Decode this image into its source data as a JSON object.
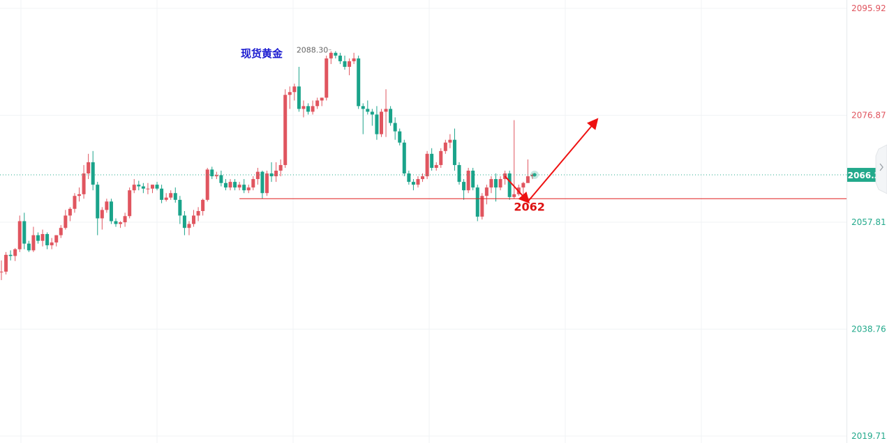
{
  "chart_data": {
    "type": "candlestick",
    "title": "现货黄金",
    "colors": {
      "up": "#e0555f",
      "down": "#1aa38a",
      "support_line": "#e01e1e",
      "arrow": "#ee1111",
      "price_tag_bg": "#22a98b",
      "grid": "#f0f3f5",
      "axis_high": "#e0555f",
      "axis_low": "#22a98b",
      "title": "#1b1bd0",
      "annotation": "#666666",
      "support_label": "#dd1111"
    },
    "y_axis": {
      "ticks": [
        "2095.92",
        "2076.87",
        "2057.81",
        "2038.76",
        "2019.71"
      ],
      "range": [
        2019.71,
        2095.92
      ]
    },
    "current_price": "2066.25",
    "high_annotation": "2088.30",
    "support": {
      "value": 2062,
      "label": "2062"
    },
    "forecast_path": [
      {
        "bar": 110,
        "price": 2066.0
      },
      {
        "bar": 115,
        "price": 2061.5
      },
      {
        "bar": 130,
        "price": 2076.0
      }
    ],
    "candles": [
      [
        2049.0,
        2051.0,
        2047.5,
        2049.0
      ],
      [
        2049.0,
        2052.5,
        2048.5,
        2052.0
      ],
      [
        2052.0,
        2052.8,
        2051.0,
        2051.8
      ],
      [
        2051.8,
        2053.2,
        2050.9,
        2053.0
      ],
      [
        2053.0,
        2059.0,
        2052.5,
        2058.0
      ],
      [
        2058.0,
        2059.5,
        2053.0,
        2054.0
      ],
      [
        2054.0,
        2054.5,
        2052.5,
        2052.8
      ],
      [
        2052.8,
        2057.0,
        2052.5,
        2055.5
      ],
      [
        2055.5,
        2056.0,
        2054.0,
        2054.5
      ],
      [
        2054.5,
        2056.5,
        2053.5,
        2055.7
      ],
      [
        2055.7,
        2056.0,
        2053.0,
        2053.7
      ],
      [
        2053.7,
        2055.0,
        2053.0,
        2054.2
      ],
      [
        2054.2,
        2055.5,
        2053.5,
        2055.5
      ],
      [
        2055.5,
        2057.3,
        2055.0,
        2056.8
      ],
      [
        2056.8,
        2060.0,
        2056.5,
        2059.0
      ],
      [
        2059.0,
        2060.5,
        2058.0,
        2060.2
      ],
      [
        2060.2,
        2063.0,
        2059.5,
        2062.5
      ],
      [
        2062.5,
        2064.0,
        2061.5,
        2062.8
      ],
      [
        2062.8,
        2068.0,
        2062.0,
        2066.5
      ],
      [
        2066.5,
        2070.0,
        2065.5,
        2068.5
      ],
      [
        2068.5,
        2070.5,
        2063.5,
        2064.5
      ],
      [
        2064.5,
        2065.0,
        2055.5,
        2058.5
      ],
      [
        2058.5,
        2060.5,
        2056.5,
        2060.0
      ],
      [
        2060.0,
        2062.0,
        2059.5,
        2061.5
      ],
      [
        2061.5,
        2062.0,
        2057.5,
        2058.0
      ],
      [
        2058.0,
        2058.5,
        2057.0,
        2057.5
      ],
      [
        2057.5,
        2058.0,
        2056.8,
        2057.8
      ],
      [
        2057.8,
        2059.5,
        2057.0,
        2058.9
      ],
      [
        2058.9,
        2064.0,
        2058.5,
        2063.5
      ],
      [
        2063.5,
        2065.5,
        2063.0,
        2064.5
      ],
      [
        2064.5,
        2065.2,
        2063.5,
        2064.2
      ],
      [
        2064.2,
        2064.8,
        2063.0,
        2063.8
      ],
      [
        2063.8,
        2064.8,
        2062.8,
        2063.8
      ],
      [
        2063.8,
        2064.5,
        2063.0,
        2064.5
      ],
      [
        2064.5,
        2065.0,
        2063.5,
        2063.8
      ],
      [
        2063.8,
        2064.5,
        2061.2,
        2061.8
      ],
      [
        2061.8,
        2063.0,
        2061.5,
        2062.2
      ],
      [
        2062.2,
        2063.5,
        2061.8,
        2063.0
      ],
      [
        2063.0,
        2064.0,
        2061.3,
        2061.8
      ],
      [
        2061.8,
        2062.5,
        2057.5,
        2059.0
      ],
      [
        2059.0,
        2059.8,
        2055.5,
        2056.8
      ],
      [
        2056.8,
        2058.0,
        2055.5,
        2057.5
      ],
      [
        2057.5,
        2060.0,
        2057.0,
        2059.0
      ],
      [
        2059.0,
        2060.5,
        2058.0,
        2059.8
      ],
      [
        2059.8,
        2062.0,
        2059.0,
        2061.8
      ],
      [
        2061.8,
        2067.5,
        2061.5,
        2067.2
      ],
      [
        2067.2,
        2067.7,
        2065.5,
        2066.0
      ],
      [
        2066.0,
        2066.8,
        2065.5,
        2066.2
      ],
      [
        2066.2,
        2067.0,
        2064.2,
        2064.8
      ],
      [
        2064.8,
        2065.5,
        2063.5,
        2064.0
      ],
      [
        2064.0,
        2065.5,
        2063.5,
        2065.0
      ],
      [
        2065.0,
        2065.5,
        2063.5,
        2064.0
      ],
      [
        2064.0,
        2065.0,
        2063.5,
        2064.5
      ],
      [
        2064.5,
        2065.5,
        2063.0,
        2063.5
      ],
      [
        2063.5,
        2064.5,
        2063.0,
        2064.0
      ],
      [
        2064.0,
        2066.0,
        2063.5,
        2065.5
      ],
      [
        2065.5,
        2067.5,
        2064.5,
        2066.8
      ],
      [
        2066.8,
        2067.0,
        2062.0,
        2063.0
      ],
      [
        2063.0,
        2067.0,
        2062.5,
        2066.5
      ],
      [
        2066.5,
        2068.5,
        2065.0,
        2066.0
      ],
      [
        2066.0,
        2068.5,
        2065.0,
        2067.0
      ],
      [
        2067.0,
        2069.0,
        2066.0,
        2068.0
      ],
      [
        2068.0,
        2081.5,
        2067.5,
        2080.5
      ],
      [
        2080.5,
        2082.0,
        2078.0,
        2081.0
      ],
      [
        2081.0,
        2082.5,
        2079.5,
        2082.0
      ],
      [
        2082.0,
        2085.5,
        2077.5,
        2078.0
      ],
      [
        2078.0,
        2079.5,
        2076.5,
        2078.5
      ],
      [
        2078.5,
        2079.0,
        2077.0,
        2077.5
      ],
      [
        2077.5,
        2079.5,
        2077.0,
        2078.5
      ],
      [
        2078.5,
        2080.0,
        2078.0,
        2079.5
      ],
      [
        2079.5,
        2080.0,
        2078.5,
        2080.0
      ],
      [
        2080.0,
        2087.5,
        2079.5,
        2087.0
      ],
      [
        2087.0,
        2088.3,
        2086.0,
        2088.0
      ],
      [
        2088.0,
        2088.3,
        2087.0,
        2087.5
      ],
      [
        2087.5,
        2088.0,
        2086.0,
        2086.5
      ],
      [
        2086.5,
        2087.5,
        2085.0,
        2085.5
      ],
      [
        2085.5,
        2087.0,
        2084.0,
        2086.5
      ],
      [
        2086.5,
        2088.0,
        2086.0,
        2087.0
      ],
      [
        2087.0,
        2087.5,
        2078.0,
        2078.5
      ],
      [
        2078.5,
        2079.0,
        2073.5,
        2078.0
      ],
      [
        2078.0,
        2079.5,
        2077.0,
        2077.5
      ],
      [
        2077.5,
        2078.0,
        2075.0,
        2077.0
      ],
      [
        2077.0,
        2078.5,
        2072.5,
        2073.5
      ],
      [
        2073.5,
        2078.0,
        2073.0,
        2077.5
      ],
      [
        2077.5,
        2081.5,
        2073.0,
        2078.0
      ],
      [
        2078.0,
        2078.5,
        2075.0,
        2075.5
      ],
      [
        2075.5,
        2076.5,
        2072.5,
        2074.0
      ],
      [
        2074.0,
        2074.5,
        2071.5,
        2072.0
      ],
      [
        2072.0,
        2072.5,
        2066.0,
        2066.5
      ],
      [
        2066.5,
        2067.0,
        2064.5,
        2065.0
      ],
      [
        2065.0,
        2065.5,
        2063.5,
        2064.5
      ],
      [
        2064.5,
        2066.0,
        2064.0,
        2065.5
      ],
      [
        2065.5,
        2066.5,
        2065.0,
        2066.0
      ],
      [
        2066.0,
        2070.5,
        2065.5,
        2070.0
      ],
      [
        2070.0,
        2071.0,
        2067.0,
        2067.5
      ],
      [
        2067.5,
        2068.5,
        2067.0,
        2068.0
      ],
      [
        2068.0,
        2071.0,
        2067.5,
        2070.5
      ],
      [
        2070.5,
        2072.5,
        2070.0,
        2072.0
      ],
      [
        2072.0,
        2073.5,
        2071.0,
        2072.5
      ],
      [
        2072.5,
        2074.5,
        2067.0,
        2068.0
      ],
      [
        2068.0,
        2068.5,
        2064.5,
        2065.0
      ],
      [
        2065.0,
        2065.5,
        2061.8,
        2063.5
      ],
      [
        2063.5,
        2067.5,
        2063.0,
        2067.0
      ],
      [
        2067.0,
        2067.5,
        2063.5,
        2064.0
      ],
      [
        2064.0,
        2064.5,
        2058.0,
        2058.8
      ],
      [
        2058.8,
        2063.0,
        2058.3,
        2062.5
      ],
      [
        2062.5,
        2064.5,
        2061.0,
        2064.0
      ],
      [
        2064.0,
        2066.0,
        2063.0,
        2065.5
      ],
      [
        2065.5,
        2066.5,
        2061.5,
        2064.0
      ],
      [
        2064.0,
        2066.0,
        2063.5,
        2065.5
      ],
      [
        2065.5,
        2067.0,
        2064.5,
        2066.5
      ],
      [
        2066.5,
        2067.0,
        2061.8,
        2062.3
      ],
      [
        2062.3,
        2076.0,
        2062.0,
        2062.8
      ],
      [
        2062.8,
        2064.5,
        2062.5,
        2064.0
      ],
      [
        2064.0,
        2065.0,
        2062.5,
        2064.8
      ],
      [
        2064.8,
        2069.0,
        2065.0,
        2066.0
      ],
      [
        2066.0,
        2066.5,
        2065.5,
        2066.25
      ]
    ]
  }
}
